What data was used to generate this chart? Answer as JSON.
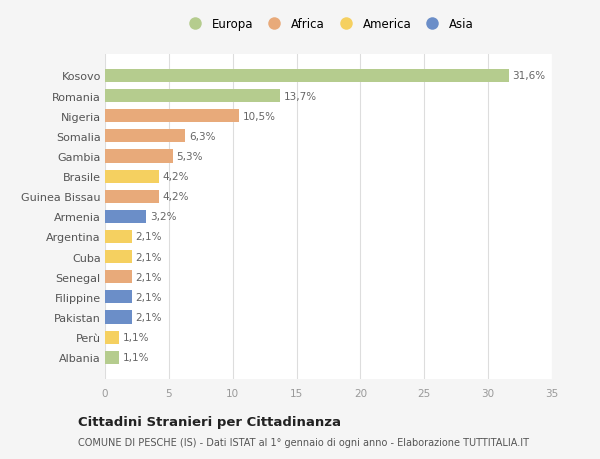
{
  "countries": [
    "Kosovo",
    "Romania",
    "Nigeria",
    "Somalia",
    "Gambia",
    "Brasile",
    "Guinea Bissau",
    "Armenia",
    "Argentina",
    "Cuba",
    "Senegal",
    "Filippine",
    "Pakistan",
    "Perù",
    "Albania"
  ],
  "values": [
    31.6,
    13.7,
    10.5,
    6.3,
    5.3,
    4.2,
    4.2,
    3.2,
    2.1,
    2.1,
    2.1,
    2.1,
    2.1,
    1.1,
    1.1
  ],
  "labels": [
    "31,6%",
    "13,7%",
    "10,5%",
    "6,3%",
    "5,3%",
    "4,2%",
    "4,2%",
    "3,2%",
    "2,1%",
    "2,1%",
    "2,1%",
    "2,1%",
    "2,1%",
    "1,1%",
    "1,1%"
  ],
  "continents": [
    "Europa",
    "Europa",
    "Africa",
    "Africa",
    "Africa",
    "America",
    "Africa",
    "Asia",
    "America",
    "America",
    "Africa",
    "Asia",
    "Asia",
    "America",
    "Europa"
  ],
  "colors": {
    "Europa": "#b5cc8e",
    "Africa": "#e8aa7a",
    "America": "#f5d060",
    "Asia": "#6b8ec8"
  },
  "legend_order": [
    "Europa",
    "Africa",
    "America",
    "Asia"
  ],
  "title": "Cittadini Stranieri per Cittadinanza",
  "subtitle": "COMUNE DI PESCHE (IS) - Dati ISTAT al 1° gennaio di ogni anno - Elaborazione TUTTITALIA.IT",
  "xlim": [
    0,
    35
  ],
  "xticks": [
    0,
    5,
    10,
    15,
    20,
    25,
    30,
    35
  ],
  "background_color": "#f5f5f5",
  "bar_background_color": "#ffffff"
}
